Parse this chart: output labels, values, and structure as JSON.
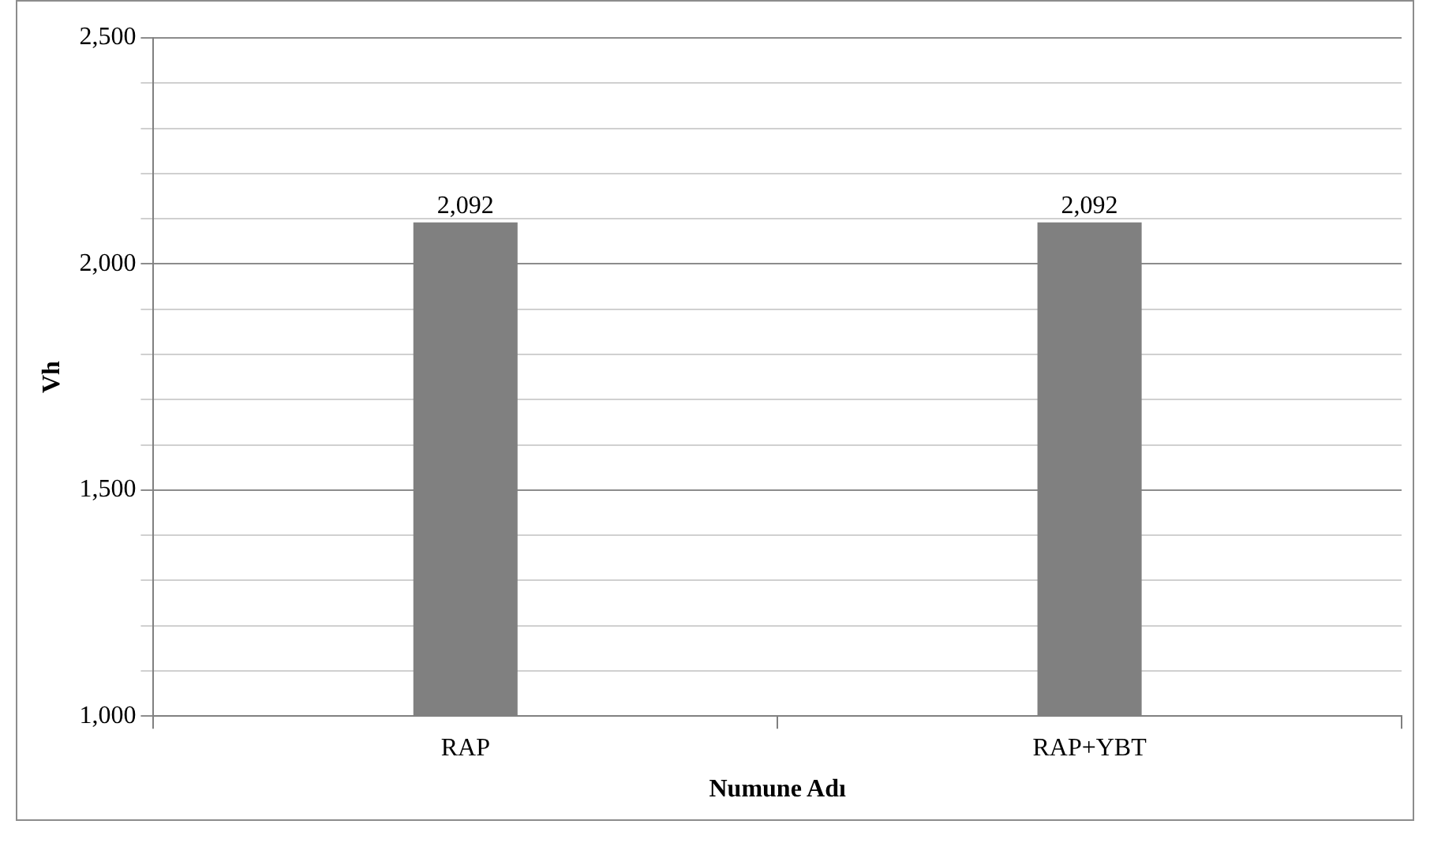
{
  "chart_data": {
    "type": "bar",
    "xlabel": "Numune Adı",
    "ylabel": "Vh",
    "categories": [
      "RAP",
      "RAP+YBT"
    ],
    "values": [
      2092,
      2092
    ],
    "color": "#808080",
    "value_labels": [
      "2,092",
      "2,092"
    ],
    "ylim": [
      1000,
      2500
    ],
    "yticks": [
      {
        "value": 1000,
        "label": "1,000"
      },
      {
        "value": 1100,
        "label": null
      },
      {
        "value": 1200,
        "label": null
      },
      {
        "value": 1300,
        "label": null
      },
      {
        "value": 1400,
        "label": null
      },
      {
        "value": 1500,
        "label": "1,500"
      },
      {
        "value": 1600,
        "label": null
      },
      {
        "value": 1700,
        "label": null
      },
      {
        "value": 1800,
        "label": null
      },
      {
        "value": 1900,
        "label": null
      },
      {
        "value": 2000,
        "label": "2,000"
      },
      {
        "value": 2100,
        "label": null
      },
      {
        "value": 2200,
        "label": null
      },
      {
        "value": 2300,
        "label": null
      },
      {
        "value": 2400,
        "label": null
      },
      {
        "value": 2500,
        "label": "2,500"
      }
    ],
    "grid": "y",
    "legend": false
  }
}
